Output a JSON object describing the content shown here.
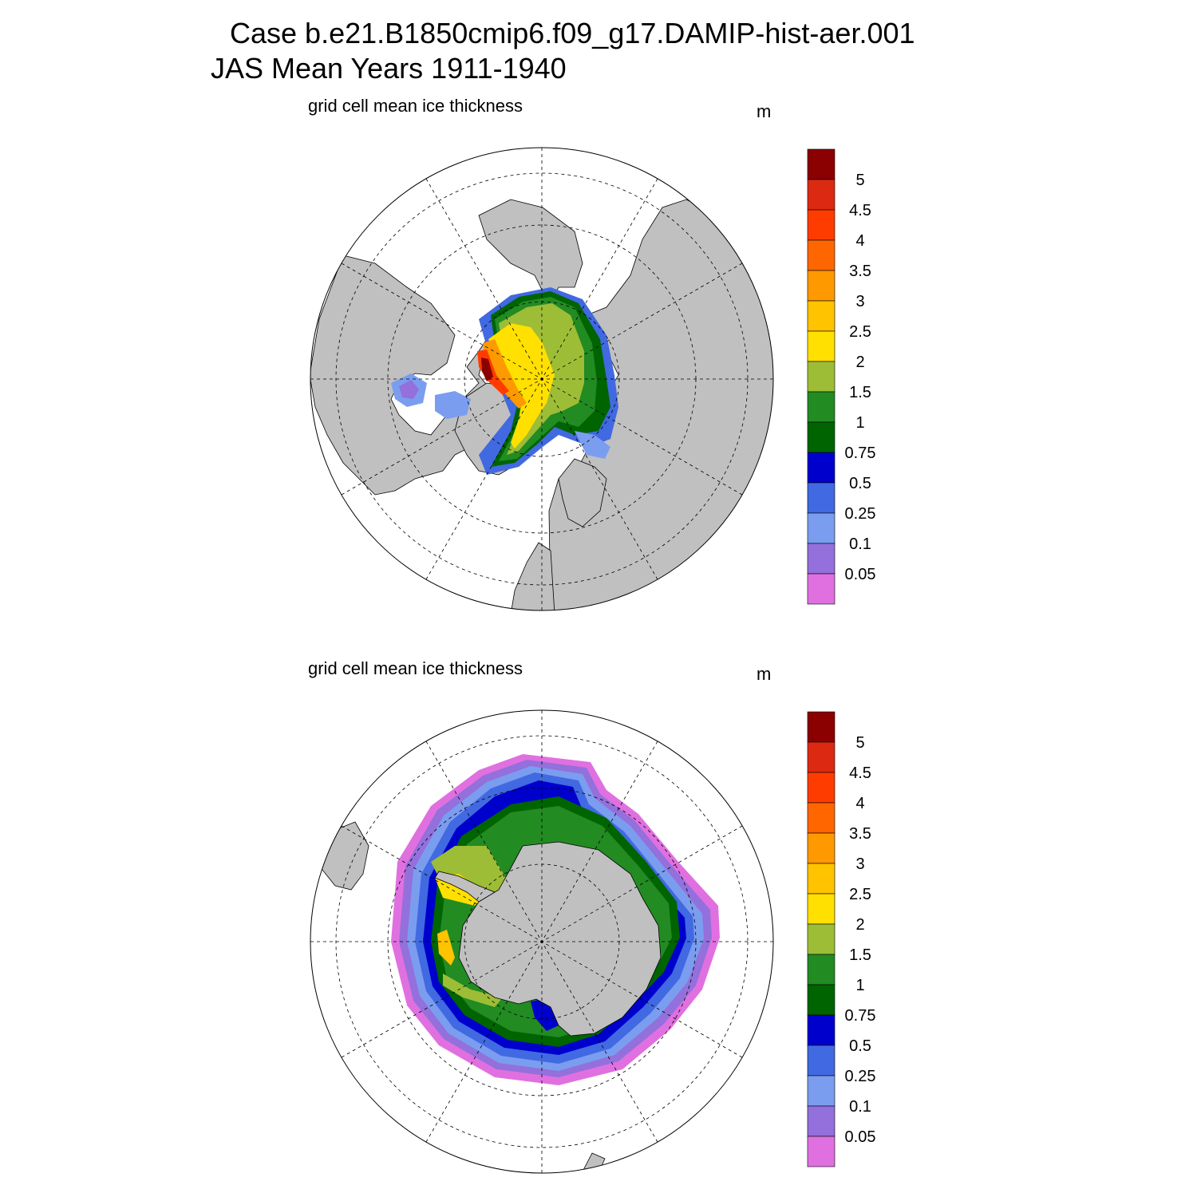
{
  "title_line1": "Case b.e21.B1850cmip6.f09_g17.DAMIP-hist-aer.001",
  "title_line2": "JAS Mean   Years 1911-1940",
  "chart_data": [
    {
      "type": "contour-map",
      "hemisphere": "north",
      "label": "grid cell mean ice thickness",
      "units": "m",
      "colorbar": {
        "levels": [
          "5",
          "4.5",
          "4",
          "3.5",
          "3",
          "2.5",
          "2",
          "1.5",
          "1",
          "0.75",
          "0.5",
          "0.25",
          "0.1",
          "0.05"
        ],
        "colors": [
          "#8b0000",
          "#dc2a12",
          "#ff3c00",
          "#ff6600",
          "#ff9900",
          "#ffc300",
          "#ffe000",
          "#9dbd36",
          "#228b22",
          "#006400",
          "#0000cd",
          "#4169e1",
          "#7b9df0",
          "#9370db",
          "#e070e0"
        ]
      }
    },
    {
      "type": "contour-map",
      "hemisphere": "south",
      "label": "grid cell mean ice thickness",
      "units": "m",
      "colorbar": {
        "levels": [
          "5",
          "4.5",
          "4",
          "3.5",
          "3",
          "2.5",
          "2",
          "1.5",
          "1",
          "0.75",
          "0.5",
          "0.25",
          "0.1",
          "0.05"
        ],
        "colors": [
          "#8b0000",
          "#dc2a12",
          "#ff3c00",
          "#ff6600",
          "#ff9900",
          "#ffc300",
          "#ffe000",
          "#9dbd36",
          "#228b22",
          "#006400",
          "#0000cd",
          "#4169e1",
          "#7b9df0",
          "#9370db",
          "#e070e0"
        ]
      }
    }
  ]
}
